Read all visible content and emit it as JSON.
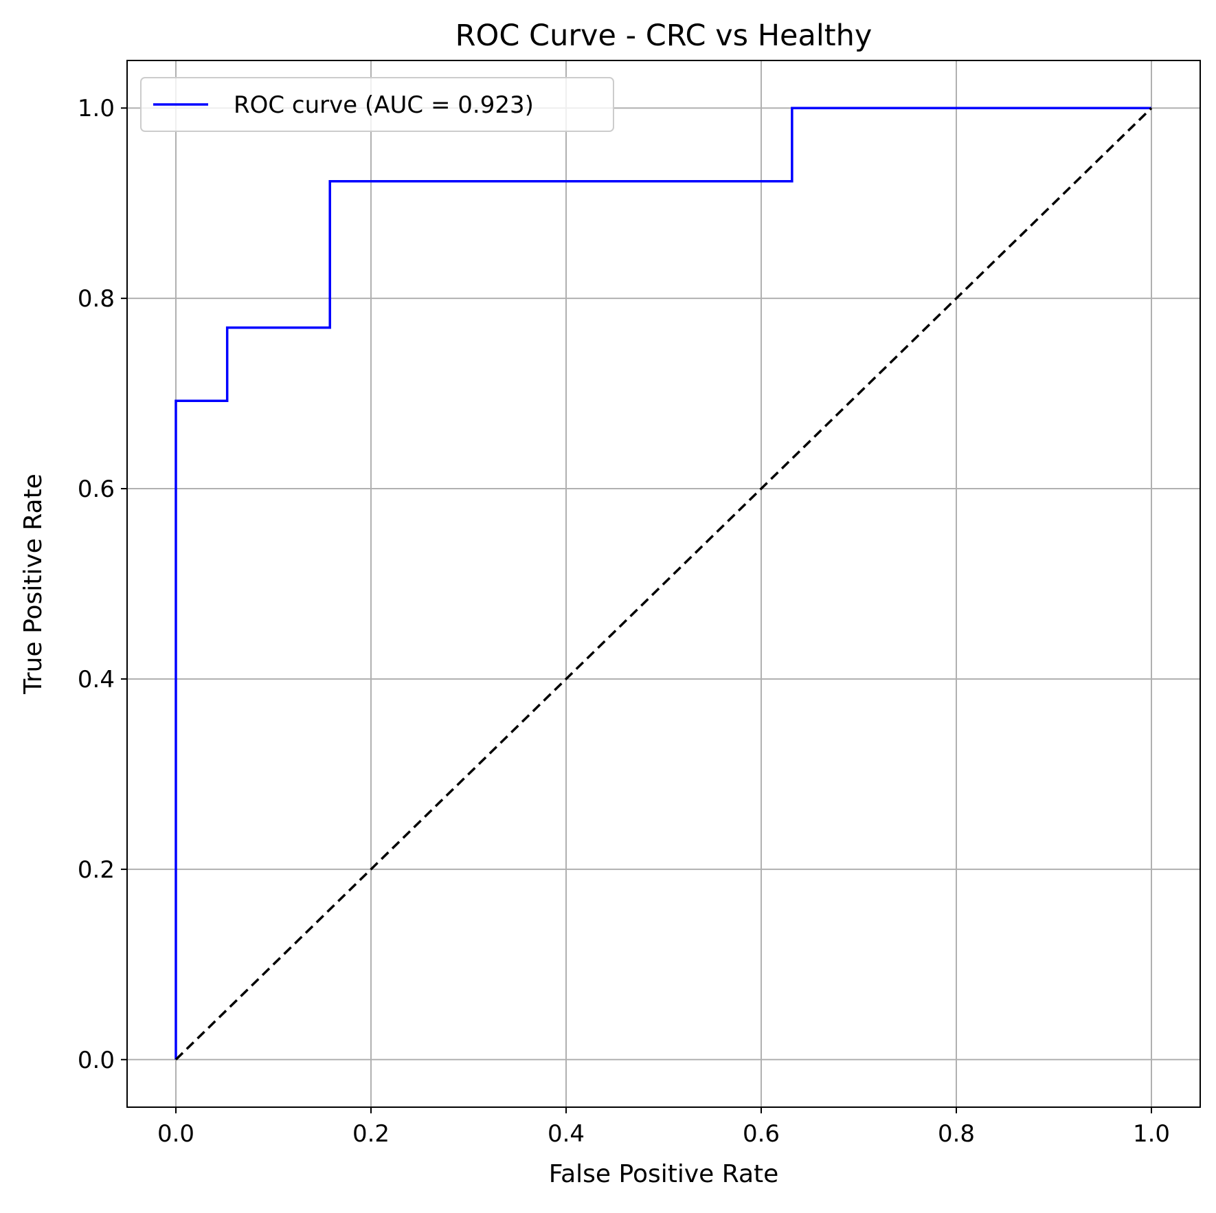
{
  "chart_data": {
    "type": "line",
    "title": "ROC Curve - CRC vs Healthy",
    "xlabel": "False Positive Rate",
    "ylabel": "True Positive Rate",
    "xlim": [
      -0.05,
      1.05
    ],
    "ylim": [
      -0.05,
      1.05
    ],
    "xticks": [
      0.0,
      0.2,
      0.4,
      0.6,
      0.8,
      1.0
    ],
    "yticks": [
      0.0,
      0.2,
      0.4,
      0.6,
      0.8,
      1.0
    ],
    "xtick_labels": [
      "0.0",
      "0.2",
      "0.4",
      "0.6",
      "0.8",
      "1.0"
    ],
    "ytick_labels": [
      "0.0",
      "0.2",
      "0.4",
      "0.6",
      "0.8",
      "1.0"
    ],
    "grid": true,
    "legend_position": "top-left",
    "series": [
      {
        "name": "ROC curve (AUC = 0.923)",
        "color": "#0000ff",
        "style": "solid",
        "x": [
          0.0,
          0.0,
          0.0526,
          0.0526,
          0.1579,
          0.1579,
          0.6316,
          0.6316,
          1.0
        ],
        "y": [
          0.0,
          0.6923,
          0.6923,
          0.7692,
          0.7692,
          0.9231,
          0.9231,
          1.0,
          1.0
        ]
      },
      {
        "color": "#000000",
        "style": "dashed",
        "x": [
          0.0,
          1.0
        ],
        "y": [
          0.0,
          1.0
        ]
      }
    ]
  }
}
